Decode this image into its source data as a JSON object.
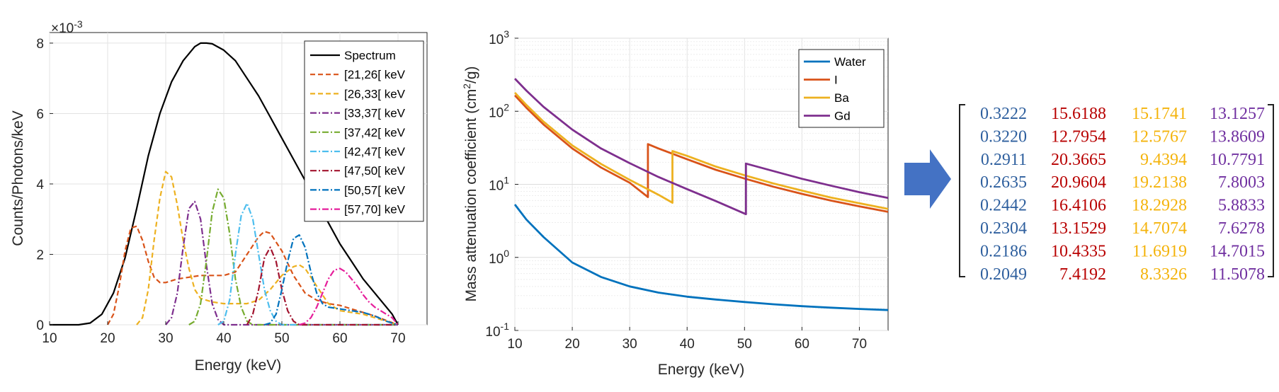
{
  "chart_data": [
    {
      "type": "line",
      "ylabel": "Counts/Photons/keV",
      "xlabel": "Energy (keV)",
      "y_exponent_label": "×10",
      "y_exponent_power": "-3",
      "xlim": [
        10,
        75
      ],
      "ylim": [
        0,
        8.3
      ],
      "xticks": [
        "10",
        "20",
        "30",
        "40",
        "50",
        "60",
        "70"
      ],
      "yticks": [
        "0",
        "2",
        "4",
        "6",
        "8"
      ],
      "grid": true,
      "legend_position": "top-right",
      "series": [
        {
          "name": "Spectrum",
          "color": "#000000",
          "style": "solid",
          "x": [
            10,
            15,
            17,
            19,
            21,
            23,
            25,
            27,
            29,
            31,
            33,
            35,
            36,
            37,
            38,
            40,
            42,
            44,
            46,
            48,
            50,
            52,
            54,
            56,
            58,
            60,
            62,
            64,
            66,
            68,
            69,
            70
          ],
          "y": [
            0,
            0,
            0.05,
            0.3,
            0.9,
            1.9,
            3.3,
            4.8,
            6.0,
            6.9,
            7.5,
            7.9,
            8.0,
            8.0,
            7.98,
            7.8,
            7.5,
            7.0,
            6.5,
            5.9,
            5.3,
            4.7,
            4.1,
            3.5,
            2.9,
            2.3,
            1.8,
            1.3,
            0.9,
            0.5,
            0.3,
            0
          ]
        },
        {
          "name": "[21,26[ keV",
          "color": "#d95319",
          "style": "dashed",
          "x": [
            20,
            21,
            22,
            23,
            24,
            25,
            26,
            27,
            28,
            29,
            30,
            31,
            32,
            34,
            36,
            38,
            40,
            42,
            44,
            46,
            47,
            48,
            50,
            52,
            54,
            56,
            58,
            60,
            62,
            64,
            66,
            68,
            70
          ],
          "y": [
            0,
            0.3,
            1.1,
            2.1,
            2.75,
            2.8,
            2.4,
            1.8,
            1.35,
            1.2,
            1.2,
            1.25,
            1.3,
            1.35,
            1.4,
            1.4,
            1.4,
            1.5,
            2.0,
            2.5,
            2.65,
            2.6,
            2.1,
            1.4,
            0.9,
            0.7,
            0.6,
            0.55,
            0.45,
            0.35,
            0.25,
            0.12,
            0
          ]
        },
        {
          "name": "[26,33[ keV",
          "color": "#edb120",
          "style": "dashed",
          "x": [
            25,
            26,
            27,
            28,
            29,
            30,
            31,
            32,
            33,
            34,
            35,
            36,
            38,
            40,
            42,
            44,
            46,
            48,
            50,
            52,
            53,
            54,
            56,
            58,
            60,
            62,
            64,
            66,
            68,
            70
          ],
          "y": [
            0,
            0.2,
            1.0,
            2.4,
            3.6,
            4.35,
            4.2,
            3.4,
            2.4,
            1.6,
            1.0,
            0.75,
            0.65,
            0.6,
            0.6,
            0.6,
            0.7,
            1.0,
            1.4,
            1.65,
            1.7,
            1.6,
            1.1,
            0.6,
            0.4,
            0.35,
            0.3,
            0.2,
            0.1,
            0
          ]
        },
        {
          "name": "[33,37[ keV",
          "color": "#7e2f8e",
          "style": "dashdot",
          "x": [
            30,
            31,
            32,
            33,
            34,
            35,
            36,
            37,
            38,
            39,
            40,
            70
          ],
          "y": [
            0,
            0.2,
            0.9,
            2.2,
            3.3,
            3.5,
            3.0,
            1.7,
            0.6,
            0.15,
            0,
            0
          ]
        },
        {
          "name": "[37,42[ keV",
          "color": "#77ac30",
          "style": "dashdot",
          "x": [
            34,
            35,
            36,
            37,
            38,
            39,
            40,
            41,
            42,
            43,
            44,
            45,
            70
          ],
          "y": [
            0,
            0.1,
            0.6,
            1.8,
            3.2,
            3.85,
            3.6,
            2.6,
            1.3,
            0.5,
            0.1,
            0,
            0
          ]
        },
        {
          "name": "[42,47[ keV",
          "color": "#4dbeee",
          "style": "dashdot",
          "x": [
            39,
            40,
            41,
            42,
            43,
            44,
            45,
            46,
            47,
            48,
            49,
            50,
            70
          ],
          "y": [
            0,
            0.1,
            0.7,
            2.0,
            3.1,
            3.45,
            3.0,
            2.0,
            1.0,
            0.4,
            0.1,
            0,
            0
          ]
        },
        {
          "name": "[47,50[ keV",
          "color": "#a2142f",
          "style": "dashdot",
          "x": [
            44,
            45,
            46,
            47,
            48,
            49,
            50,
            51,
            52,
            53,
            70
          ],
          "y": [
            0,
            0.3,
            1.0,
            1.9,
            2.2,
            1.8,
            1.0,
            0.4,
            0.1,
            0,
            0
          ]
        },
        {
          "name": "[50,57[ keV",
          "color": "#0072bd",
          "style": "dashdot",
          "x": [
            47,
            48,
            49,
            50,
            51,
            52,
            53,
            54,
            55,
            56,
            57,
            58,
            60,
            62,
            64,
            66,
            68,
            70
          ],
          "y": [
            0,
            0.05,
            0.3,
            1.0,
            1.8,
            2.45,
            2.55,
            2.2,
            1.5,
            0.9,
            0.6,
            0.5,
            0.45,
            0.4,
            0.35,
            0.25,
            0.1,
            0
          ]
        },
        {
          "name": "[57,70] keV",
          "color": "#e61e9b",
          "style": "dashdot",
          "x": [
            53,
            54,
            55,
            56,
            57,
            58,
            59,
            60,
            61,
            62,
            63,
            64,
            65,
            66,
            67,
            68,
            69,
            70
          ],
          "y": [
            0,
            0.05,
            0.2,
            0.5,
            0.9,
            1.3,
            1.55,
            1.6,
            1.5,
            1.3,
            1.1,
            0.85,
            0.65,
            0.5,
            0.4,
            0.3,
            0.2,
            0
          ]
        }
      ]
    },
    {
      "type": "line",
      "ylabel": "Mass attenuation coefficient (cm²/g)",
      "ylabel_parts": {
        "pre": "Mass attenuation coefficient (cm",
        "sup": "2",
        "post": "/g)"
      },
      "xlabel": "Energy (keV)",
      "xlim": [
        10,
        75
      ],
      "ylim": [
        0.1,
        1000
      ],
      "yscale": "log",
      "xticks": [
        "10",
        "20",
        "30",
        "40",
        "50",
        "60",
        "70"
      ],
      "yticks": [
        {
          "base": "10",
          "exp": "-1"
        },
        {
          "base": "10",
          "exp": "0"
        },
        {
          "base": "10",
          "exp": "1"
        },
        {
          "base": "10",
          "exp": "2"
        },
        {
          "base": "10",
          "exp": "3"
        }
      ],
      "grid": true,
      "legend_position": "top-right",
      "series": [
        {
          "name": "Water",
          "color": "#0072bd",
          "x": [
            10,
            12,
            15,
            20,
            25,
            30,
            35,
            40,
            45,
            50,
            55,
            60,
            65,
            70,
            75
          ],
          "y": [
            5.3,
            3.3,
            1.9,
            0.85,
            0.54,
            0.4,
            0.33,
            0.29,
            0.265,
            0.245,
            0.228,
            0.215,
            0.205,
            0.197,
            0.19
          ]
        },
        {
          "name": "I",
          "color": "#d95319",
          "x": [
            10,
            12,
            15,
            20,
            25,
            30,
            33.17,
            33.17,
            35,
            40,
            45,
            50,
            55,
            60,
            65,
            70,
            75
          ],
          "y": [
            165,
            112,
            66,
            31,
            17,
            10.5,
            6.7,
            35.5,
            31,
            22,
            15.8,
            12,
            9.3,
            7.4,
            6.0,
            5.0,
            4.2
          ]
        },
        {
          "name": "Ba",
          "color": "#edb120",
          "x": [
            10,
            12,
            15,
            20,
            25,
            30,
            35,
            37.44,
            37.44,
            40,
            45,
            50,
            55,
            60,
            65,
            70,
            75
          ],
          "y": [
            180,
            122,
            72,
            34,
            19,
            11.5,
            7.2,
            5.6,
            28.5,
            24.5,
            17.5,
            13.3,
            10.3,
            8.2,
            6.6,
            5.5,
            4.6
          ]
        },
        {
          "name": "Gd",
          "color": "#7e2f8e",
          "x": [
            10,
            12,
            15,
            20,
            25,
            30,
            35,
            40,
            45,
            50.24,
            50.24,
            55,
            60,
            65,
            70,
            75
          ],
          "y": [
            280,
            192,
            115,
            56,
            31,
            19.5,
            12.6,
            8.6,
            5.9,
            3.9,
            19.2,
            15.2,
            11.9,
            9.6,
            7.8,
            6.5
          ]
        }
      ]
    }
  ],
  "arrow": {
    "color": "#4472c4"
  },
  "matrix": {
    "colors": [
      "#2e5f9e",
      "#b80000",
      "#f4b30b",
      "#7030a0"
    ],
    "rows": [
      [
        "0.3222",
        "15.6188",
        "15.1741",
        "13.1257"
      ],
      [
        "0.3220",
        "12.7954",
        "12.5767",
        "13.8609"
      ],
      [
        "0.2911",
        "20.3665",
        "9.4394",
        "10.7791"
      ],
      [
        "0.2635",
        "20.9604",
        "19.2138",
        "7.8003"
      ],
      [
        "0.2442",
        "16.4106",
        "18.2928",
        "5.8833"
      ],
      [
        "0.2304",
        "13.1529",
        "14.7074",
        "7.6278"
      ],
      [
        "0.2186",
        "10.4335",
        "11.6919",
        "14.7015"
      ],
      [
        "0.2049",
        "7.4192",
        "8.3326",
        "11.5078"
      ]
    ]
  }
}
